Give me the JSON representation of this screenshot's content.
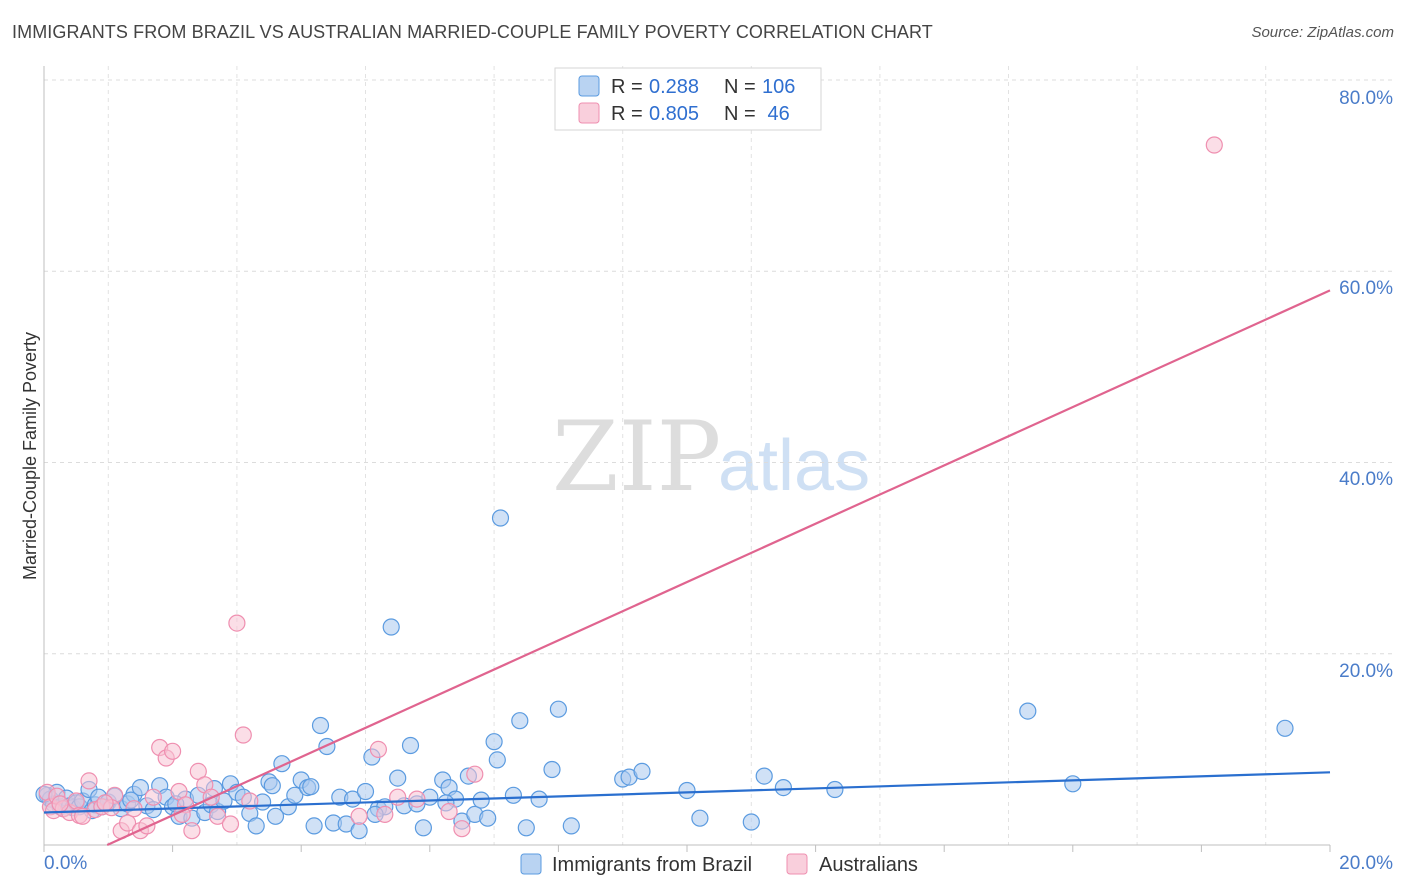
{
  "header": {
    "title": "IMMIGRANTS FROM BRAZIL VS AUSTRALIAN MARRIED-COUPLE FAMILY POVERTY CORRELATION CHART",
    "source": "Source: ZipAtlas.com"
  },
  "watermark": {
    "zip": "ZIP",
    "atlas": "atlas"
  },
  "chart_data": {
    "type": "scatter",
    "ylabel": "Married-Couple Family Poverty",
    "xlim": [
      0,
      20
    ],
    "ylim": [
      0,
      80
    ],
    "x_tick_labels": [
      "0.0%",
      "20.0%"
    ],
    "y_ticks": [
      20,
      40,
      60,
      80
    ],
    "y_tick_labels": [
      "20.0%",
      "40.0%",
      "60.0%",
      "80.0%"
    ],
    "legend_stats": [
      {
        "r_label": "R =",
        "r_value": "0.288",
        "n_label": "N =",
        "n_value": "106",
        "color": "#5b9be0"
      },
      {
        "r_label": "R =",
        "r_value": "0.805",
        "n_label": "N =",
        "n_value": " 46",
        "color": "#ef8fb0"
      }
    ],
    "series": [
      {
        "name": "Immigrants from Brazil",
        "color": "#5b9be0",
        "fill": "#a9c8ef",
        "line_color": "#2a6fcf",
        "trend": {
          "x0": 0.0,
          "y0": 3.4,
          "x1": 20.0,
          "y1": 7.6
        },
        "points": [
          [
            0.05,
            5.2
          ],
          [
            0.1,
            4.8
          ],
          [
            0.15,
            4.3
          ],
          [
            0.2,
            5.5
          ],
          [
            0.25,
            4.0
          ],
          [
            0.3,
            3.8
          ],
          [
            0.35,
            4.9
          ],
          [
            0.4,
            4.1
          ],
          [
            0.45,
            3.9
          ],
          [
            0.5,
            4.4
          ],
          [
            0.55,
            4.0
          ],
          [
            0.6,
            4.6
          ],
          [
            0.7,
            5.8
          ],
          [
            0.75,
            3.6
          ],
          [
            0.8,
            4.2
          ],
          [
            0.85,
            5.0
          ],
          [
            1.0,
            4.5
          ],
          [
            1.1,
            5.1
          ],
          [
            1.2,
            3.8
          ],
          [
            1.3,
            4.3
          ],
          [
            1.4,
            5.3
          ],
          [
            1.5,
            6.0
          ],
          [
            1.6,
            4.1
          ],
          [
            1.7,
            3.7
          ],
          [
            1.8,
            6.2
          ],
          [
            1.9,
            5.0
          ],
          [
            2.0,
            4.0
          ],
          [
            2.1,
            3.0
          ],
          [
            2.2,
            4.8
          ],
          [
            2.3,
            2.8
          ],
          [
            2.4,
            5.2
          ],
          [
            2.5,
            3.4
          ],
          [
            2.6,
            4.2
          ],
          [
            2.7,
            3.5
          ],
          [
            2.8,
            4.6
          ],
          [
            2.9,
            6.4
          ],
          [
            3.0,
            5.5
          ],
          [
            3.1,
            5.0
          ],
          [
            3.2,
            3.3
          ],
          [
            3.3,
            2.0
          ],
          [
            3.4,
            4.5
          ],
          [
            3.5,
            6.6
          ],
          [
            3.6,
            3.0
          ],
          [
            3.7,
            8.5
          ],
          [
            3.8,
            4.0
          ],
          [
            3.9,
            5.2
          ],
          [
            4.0,
            6.8
          ],
          [
            4.1,
            6.0
          ],
          [
            4.2,
            2.0
          ],
          [
            4.3,
            12.5
          ],
          [
            4.4,
            10.3
          ],
          [
            4.5,
            2.3
          ],
          [
            4.6,
            5.0
          ],
          [
            4.7,
            2.2
          ],
          [
            4.8,
            4.8
          ],
          [
            4.9,
            1.5
          ],
          [
            5.0,
            5.6
          ],
          [
            5.1,
            9.2
          ],
          [
            5.2,
            3.8
          ],
          [
            5.3,
            4.0
          ],
          [
            5.4,
            22.8
          ],
          [
            5.5,
            7.0
          ],
          [
            5.6,
            4.1
          ],
          [
            5.7,
            10.4
          ],
          [
            5.8,
            4.3
          ],
          [
            5.9,
            1.8
          ],
          [
            6.0,
            5.0
          ],
          [
            6.2,
            6.8
          ],
          [
            6.3,
            6.0
          ],
          [
            6.4,
            4.8
          ],
          [
            6.5,
            2.5
          ],
          [
            6.6,
            7.2
          ],
          [
            6.7,
            3.2
          ],
          [
            6.8,
            4.7
          ],
          [
            6.9,
            2.8
          ],
          [
            7.0,
            10.8
          ],
          [
            7.05,
            8.9
          ],
          [
            7.1,
            34.2
          ],
          [
            7.3,
            5.2
          ],
          [
            7.4,
            13.0
          ],
          [
            7.5,
            1.8
          ],
          [
            7.7,
            4.8
          ],
          [
            7.9,
            7.9
          ],
          [
            8.0,
            14.2
          ],
          [
            8.2,
            2.0
          ],
          [
            9.0,
            6.9
          ],
          [
            9.1,
            7.1
          ],
          [
            9.3,
            7.7
          ],
          [
            10.0,
            5.7
          ],
          [
            10.2,
            2.8
          ],
          [
            11.0,
            2.4
          ],
          [
            11.2,
            7.2
          ],
          [
            11.5,
            6.0
          ],
          [
            12.3,
            5.8
          ],
          [
            15.3,
            14.0
          ],
          [
            16.0,
            6.4
          ],
          [
            19.3,
            12.2
          ],
          [
            0.0,
            5.3
          ],
          [
            1.35,
            4.7
          ],
          [
            2.05,
            4.3
          ],
          [
            2.65,
            5.9
          ],
          [
            3.55,
            6.2
          ],
          [
            4.15,
            6.1
          ],
          [
            5.15,
            3.2
          ],
          [
            6.25,
            4.4
          ],
          [
            0.9,
            4.0
          ]
        ]
      },
      {
        "name": "Australians",
        "color": "#ef8fb0",
        "fill": "#f7c2d3",
        "line_color": "#e0648f",
        "trend": {
          "x0": 0.0,
          "y0": -3.0,
          "x1": 20.0,
          "y1": 58.0
        },
        "points": [
          [
            0.05,
            5.5
          ],
          [
            0.1,
            4.0
          ],
          [
            0.15,
            3.6
          ],
          [
            0.2,
            5.1
          ],
          [
            0.3,
            3.8
          ],
          [
            0.4,
            3.4
          ],
          [
            0.5,
            4.6
          ],
          [
            0.55,
            3.1
          ],
          [
            0.6,
            3.0
          ],
          [
            0.7,
            6.7
          ],
          [
            0.8,
            3.7
          ],
          [
            0.9,
            4.0
          ],
          [
            1.1,
            5.2
          ],
          [
            1.2,
            1.5
          ],
          [
            1.3,
            2.3
          ],
          [
            1.4,
            3.8
          ],
          [
            1.5,
            1.5
          ],
          [
            1.6,
            2.0
          ],
          [
            1.7,
            5.0
          ],
          [
            1.8,
            10.2
          ],
          [
            1.9,
            9.1
          ],
          [
            2.0,
            9.8
          ],
          [
            2.1,
            5.6
          ],
          [
            2.2,
            4.2
          ],
          [
            2.3,
            1.5
          ],
          [
            2.4,
            7.7
          ],
          [
            2.5,
            6.3
          ],
          [
            2.6,
            5.0
          ],
          [
            2.7,
            3.0
          ],
          [
            2.9,
            2.2
          ],
          [
            3.0,
            23.2
          ],
          [
            3.1,
            11.5
          ],
          [
            3.2,
            4.6
          ],
          [
            4.9,
            3.0
          ],
          [
            5.2,
            10.0
          ],
          [
            5.3,
            3.2
          ],
          [
            5.5,
            5.0
          ],
          [
            5.8,
            4.8
          ],
          [
            6.3,
            3.5
          ],
          [
            6.5,
            1.7
          ],
          [
            6.7,
            7.4
          ],
          [
            18.2,
            73.2
          ],
          [
            0.25,
            4.3
          ],
          [
            1.05,
            3.9
          ],
          [
            2.15,
            3.2
          ],
          [
            0.95,
            4.4
          ]
        ]
      }
    ]
  }
}
